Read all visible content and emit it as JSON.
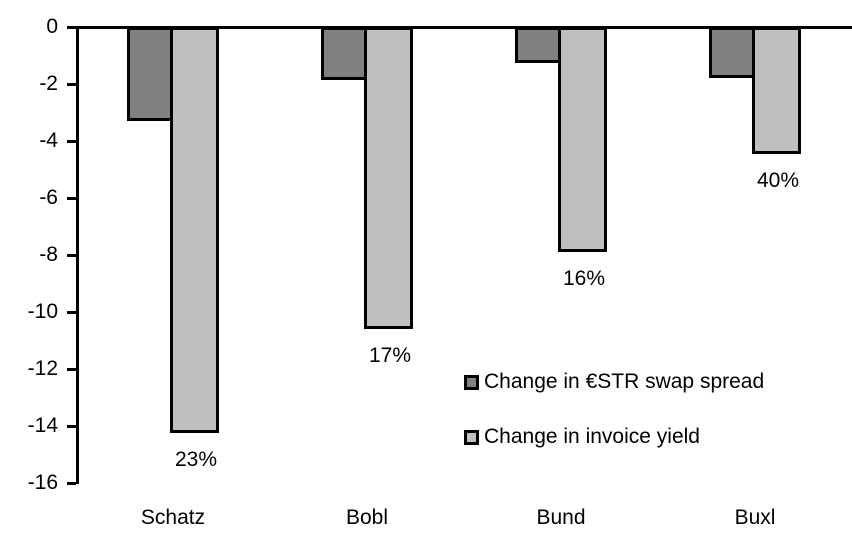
{
  "chart_data": {
    "type": "bar",
    "orientation": "vertical-negative",
    "categories": [
      "Schatz",
      "Bobl",
      "Bund",
      "Buxl"
    ],
    "series": [
      {
        "name": "Change in €STR swap spread",
        "color": "#808080",
        "values": [
          -3.3,
          -1.85,
          -1.25,
          -1.8
        ]
      },
      {
        "name": "Change in invoice yield",
        "color": "#bfbfbf",
        "values": [
          -14.25,
          -10.6,
          -7.9,
          -4.45
        ]
      }
    ],
    "bar_labels": {
      "attached_series": "Change in invoice yield",
      "values": [
        "23%",
        "17%",
        "16%",
        "40%"
      ]
    },
    "yticks": [
      "0",
      "-2",
      "-4",
      "-6",
      "-8",
      "-10",
      "-12",
      "-14",
      "-16"
    ],
    "ylim": [
      -16,
      0
    ],
    "xlabel": "",
    "ylabel": "",
    "grid": false,
    "legend_position": "inside-right-middle",
    "bar_outline_color": "#000000",
    "axis_color": "#000000",
    "background_color": "#ffffff"
  }
}
